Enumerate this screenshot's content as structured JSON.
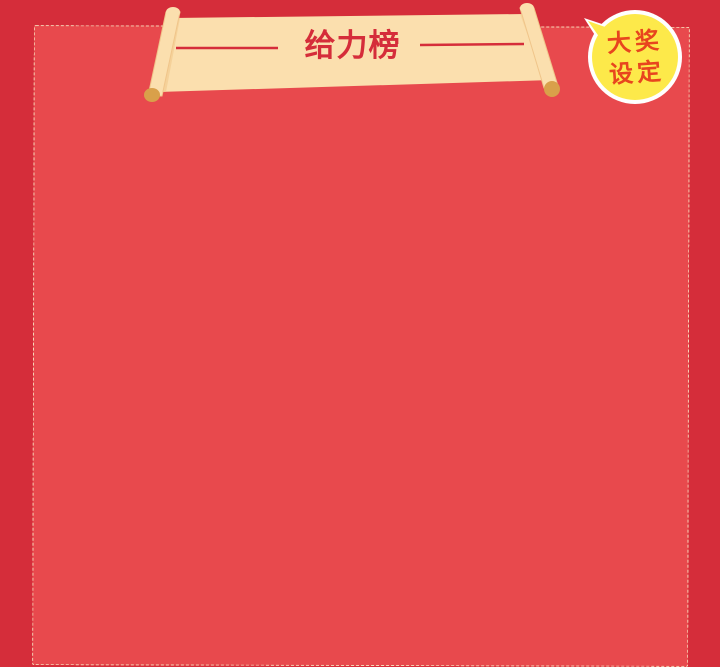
{
  "header": {
    "title": "给力榜"
  },
  "badge": {
    "line1": "大奖",
    "line2": "设定"
  },
  "colors": {
    "background": "#d52d3a",
    "panel": "#e8494d",
    "scroll": "#fbdfae",
    "scroll_shadow": "#f2c88a",
    "roll_end": "#d9a04a",
    "badge": "#fde94a",
    "badge_text": "#e8451e",
    "title_text": "#d52d3a"
  },
  "icons": {
    "banner": "scroll-banner-icon",
    "badge": "speech-bubble-badge-icon"
  }
}
